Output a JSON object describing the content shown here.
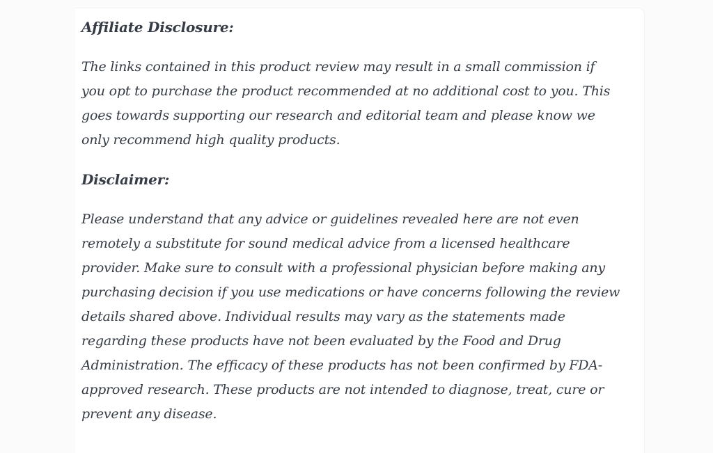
{
  "page": {
    "background_color": "#fbfbfb",
    "card_background": "#ffffff",
    "card_border_color": "#f2f2f2",
    "text_color": "#353c46"
  },
  "content": {
    "affiliate": {
      "heading": "Affiliate Disclosure:",
      "paragraph_lines": [
        "The links contained in this product review may result in a small commission if",
        "you opt to purchase the product recommended at no additional cost to you. This",
        "goes towards supporting our research and editorial team and please know we",
        "only recommend high quality products."
      ]
    },
    "disclaimer": {
      "heading": "Disclaimer:",
      "paragraph_lines": [
        "Please understand that any advice or guidelines revealed here are not even",
        "remotely a substitute for sound medical advice from a licensed healthcare",
        "provider. Make sure to consult with a professional physician before making any",
        "purchasing decision if you use medications or have concerns following the review",
        "details shared above. Individual results may vary as the statements made",
        "regarding these products have not been evaluated by the Food and Drug",
        "Administration. The efficacy of these products has not been confirmed by FDA-",
        "approved research. These products are not intended to diagnose, treat, cure or",
        "prevent any disease."
      ]
    }
  }
}
